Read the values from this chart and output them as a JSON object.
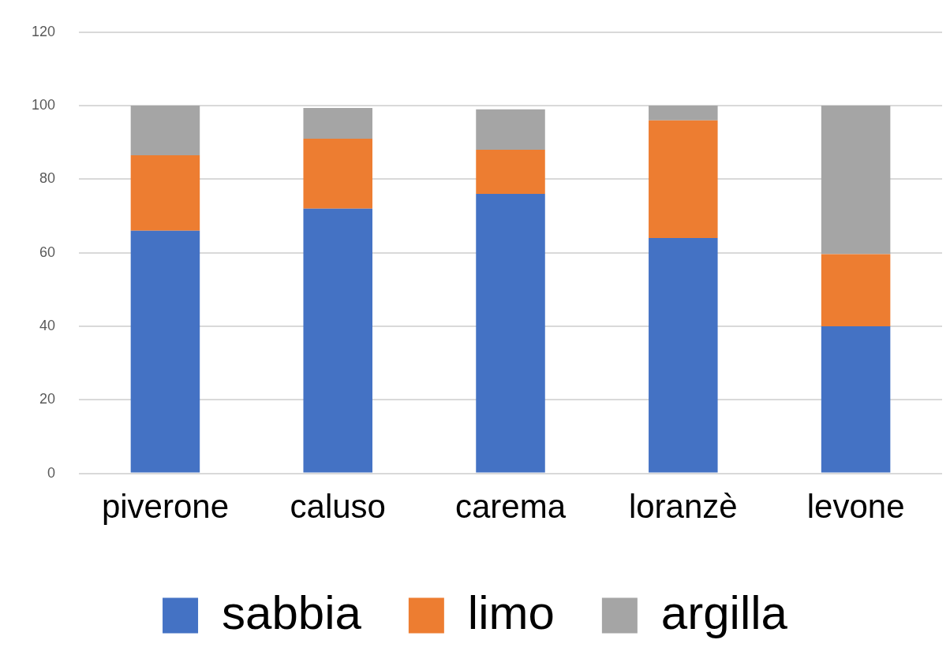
{
  "chart_data": {
    "type": "bar",
    "stacked": true,
    "categories": [
      "piverone",
      "caluso",
      "carema",
      "loranzè",
      "levone"
    ],
    "series": [
      {
        "name": "sabbia",
        "color": "#4472c4",
        "values": [
          66,
          72,
          76,
          64,
          40
        ]
      },
      {
        "name": "limo",
        "color": "#ed7d31",
        "values": [
          20.5,
          19,
          12,
          32,
          19.6
        ]
      },
      {
        "name": "argilla",
        "color": "#a5a5a5",
        "values": [
          13.5,
          8.4,
          11,
          4,
          40.4
        ]
      }
    ],
    "ylim": [
      0,
      120
    ],
    "yticks": [
      0,
      20,
      40,
      60,
      80,
      100,
      120
    ],
    "grid": "y",
    "legend": "bottom"
  }
}
